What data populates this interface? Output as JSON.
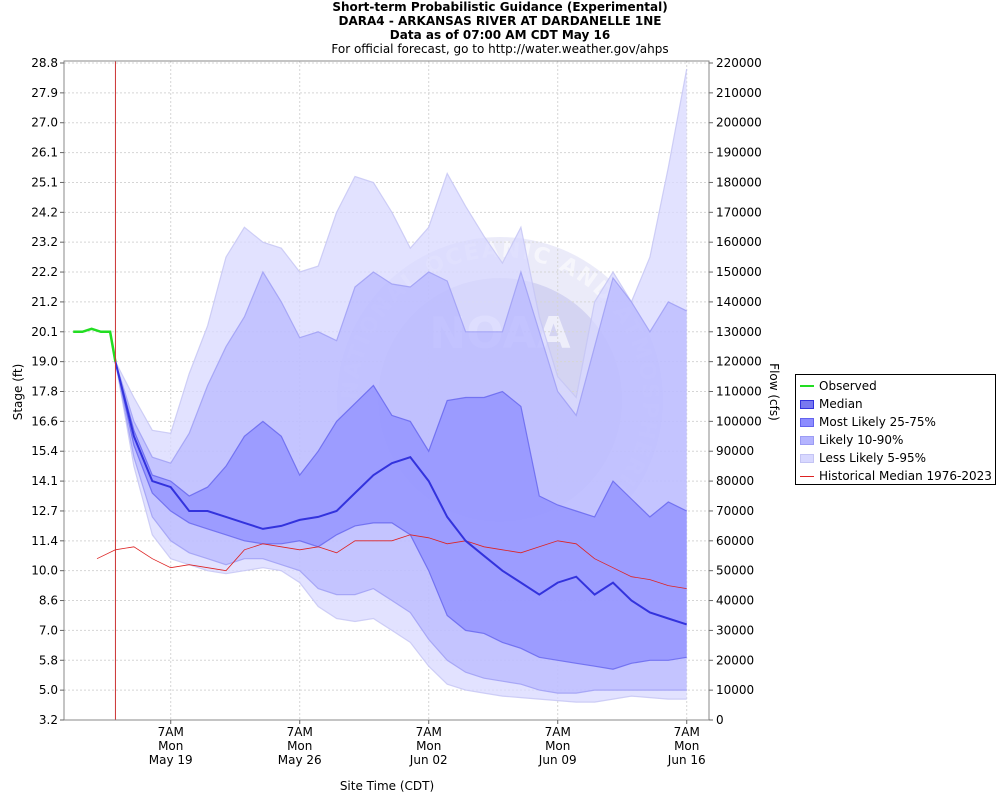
{
  "header": {
    "title1": "Short-term Probabilistic Guidance (Experimental)",
    "title2": "DARA4 - ARKANSAS RIVER AT DARDANELLE 1NE",
    "title3": "Data as of 07:00 AM CDT May 16",
    "subtitle": "For official forecast, go to http://water.weather.gov/ahps"
  },
  "axes": {
    "y_left_label": "Stage (ft)",
    "y_right_label": "Flow (cfs)",
    "x_label": "Site Time (CDT)",
    "y_left_ticks": [
      "3.2",
      "5.0",
      "5.8",
      "7.0",
      "8.6",
      "10.0",
      "11.4",
      "12.7",
      "14.1",
      "15.4",
      "16.6",
      "17.8",
      "19.0",
      "20.1",
      "21.2",
      "22.2",
      "23.2",
      "24.2",
      "25.1",
      "26.1",
      "27.0",
      "27.9",
      "28.8"
    ],
    "y_right_ticks": [
      "0",
      "10000",
      "20000",
      "30000",
      "40000",
      "50000",
      "60000",
      "70000",
      "80000",
      "90000",
      "100000",
      "110000",
      "120000",
      "130000",
      "140000",
      "150000",
      "160000",
      "170000",
      "180000",
      "190000",
      "200000",
      "210000",
      "220000"
    ],
    "x_ticks": [
      {
        "l1": "7AM",
        "l2": "Mon",
        "l3": "May 19"
      },
      {
        "l1": "7AM",
        "l2": "Mon",
        "l3": "May 26"
      },
      {
        "l1": "7AM",
        "l2": "Mon",
        "l3": "Jun 02"
      },
      {
        "l1": "7AM",
        "l2": "Mon",
        "l3": "Jun 09"
      },
      {
        "l1": "7AM",
        "l2": "Mon",
        "l3": "Jun 16"
      }
    ]
  },
  "legend": {
    "observed": "Observed",
    "median": "Median",
    "most_likely": "Most Likely 25-75%",
    "likely": "Likely 10-90%",
    "less_likely": "Less Likely 5-95%",
    "historical": "Historical Median 1976-2023"
  },
  "watermark": {
    "logo_text": "NOAA",
    "ring_text": "NATIONAL OCEANIC AND ATMOSPHERIC ADMINISTRATION · U.S. DEPARTMENT OF COMMERCE"
  },
  "colors": {
    "observed": "#22dd22",
    "median": "#3333dd",
    "most_likely": "#8c8cff",
    "likely": "#b4b4ff",
    "less_likely": "#d8d8ff",
    "historical": "#dd2222",
    "now_line": "#cc3333"
  },
  "chart_data": {
    "type": "area",
    "title": "Short-term Probabilistic Guidance (Experimental)",
    "xlabel": "Site Time (CDT)",
    "ylabel": "Stage (ft)",
    "y2label": "Flow (cfs)",
    "xlim": [
      "May 13 12:00",
      "Jun 17 12:00"
    ],
    "ylim_flow": [
      0,
      220000
    ],
    "grid": true,
    "legend_position": "right",
    "now_marker": "May 16 07:00",
    "x": [
      "May 16",
      "May 17",
      "May 18",
      "May 19",
      "May 20",
      "May 21",
      "May 22",
      "May 23",
      "May 24",
      "May 25",
      "May 26",
      "May 27",
      "May 28",
      "May 29",
      "May 30",
      "May 31",
      "Jun 01",
      "Jun 02",
      "Jun 03",
      "Jun 04",
      "Jun 05",
      "Jun 06",
      "Jun 07",
      "Jun 08",
      "Jun 09",
      "Jun 10",
      "Jun 11",
      "Jun 12",
      "Jun 13",
      "Jun 14",
      "Jun 15",
      "Jun 16"
    ],
    "series": [
      {
        "name": "Observed",
        "x": [
          "May 14 00:00",
          "May 14 12:00",
          "May 15 00:00",
          "May 15 12:00",
          "May 16 00:00",
          "May 16 07:00"
        ],
        "values": [
          130000,
          130000,
          131000,
          130000,
          130000,
          120000
        ]
      },
      {
        "name": "Median",
        "values": [
          120000,
          95000,
          80000,
          78000,
          70000,
          70000,
          68000,
          66000,
          64000,
          65000,
          67000,
          68000,
          70000,
          76000,
          82000,
          86000,
          88000,
          80000,
          68000,
          60000,
          55000,
          50000,
          46000,
          42000,
          46000,
          48000,
          42000,
          46000,
          40000,
          36000,
          34000,
          32000
        ]
      },
      {
        "name": "Most Likely 25-75%",
        "low": [
          120000,
          92000,
          76000,
          70000,
          66000,
          64000,
          62000,
          60000,
          59000,
          59000,
          60000,
          58000,
          62000,
          65000,
          66000,
          66000,
          62000,
          50000,
          35000,
          30000,
          29000,
          26000,
          24000,
          21000,
          20000,
          19000,
          18000,
          17000,
          19000,
          20000,
          20000,
          21000
        ],
        "high": [
          120000,
          97000,
          82000,
          80000,
          75000,
          78000,
          85000,
          95000,
          100000,
          95000,
          82000,
          90000,
          100000,
          106000,
          112000,
          102000,
          100000,
          90000,
          107000,
          108000,
          108000,
          110000,
          105000,
          75000,
          72000,
          70000,
          68000,
          80000,
          74000,
          68000,
          73000,
          70000
        ]
      },
      {
        "name": "Likely 10-90%",
        "low": [
          120000,
          88000,
          68000,
          60000,
          56000,
          54000,
          52000,
          54000,
          54000,
          52000,
          50000,
          44000,
          42000,
          42000,
          44000,
          40000,
          36000,
          27000,
          20000,
          16000,
          14000,
          13000,
          12000,
          10000,
          9000,
          9000,
          10000,
          10000,
          10000,
          10000,
          10000,
          10000
        ],
        "high": [
          120000,
          100000,
          88000,
          86000,
          96000,
          112000,
          125000,
          135000,
          150000,
          140000,
          128000,
          130000,
          127000,
          145000,
          150000,
          146000,
          145000,
          150000,
          147000,
          130000,
          130000,
          130000,
          150000,
          130000,
          110000,
          102000,
          125000,
          148000,
          140000,
          130000,
          140000,
          137000
        ]
      },
      {
        "name": "Less Likely 5-95%",
        "low": [
          120000,
          85000,
          62000,
          54000,
          52000,
          50000,
          49000,
          50000,
          51000,
          50000,
          46000,
          38000,
          34000,
          33000,
          34000,
          30000,
          26000,
          18000,
          12000,
          10000,
          9000,
          8000,
          7500,
          7000,
          6500,
          6000,
          6000,
          7000,
          8000,
          7500,
          7000,
          7000
        ],
        "high": [
          120000,
          108000,
          97000,
          96000,
          116000,
          132000,
          155000,
          165000,
          160000,
          158000,
          150000,
          152000,
          170000,
          182000,
          180000,
          170000,
          158000,
          165000,
          183000,
          172000,
          162000,
          153000,
          165000,
          135000,
          115000,
          108000,
          140000,
          150000,
          140000,
          155000,
          185000,
          218000
        ]
      },
      {
        "name": "Historical Median 1976-2023",
        "x": [
          "May 15",
          "May 16",
          "May 17",
          "May 18",
          "May 19",
          "May 20",
          "May 21",
          "May 22",
          "May 23",
          "May 24",
          "May 25",
          "May 26",
          "May 27",
          "May 28",
          "May 29",
          "May 30",
          "May 31",
          "Jun 01",
          "Jun 02",
          "Jun 03",
          "Jun 04",
          "Jun 05",
          "Jun 06",
          "Jun 07",
          "Jun 08",
          "Jun 09",
          "Jun 10",
          "Jun 11",
          "Jun 12",
          "Jun 13",
          "Jun 14",
          "Jun 15",
          "Jun 16"
        ],
        "values": [
          54000,
          57000,
          58000,
          54000,
          51000,
          52000,
          51000,
          50000,
          57000,
          59000,
          58000,
          57000,
          58000,
          56000,
          60000,
          60000,
          60000,
          62000,
          61000,
          59000,
          60000,
          58000,
          57000,
          56000,
          58000,
          60000,
          59000,
          54000,
          51000,
          48000,
          47000,
          45000,
          44000
        ]
      }
    ]
  }
}
